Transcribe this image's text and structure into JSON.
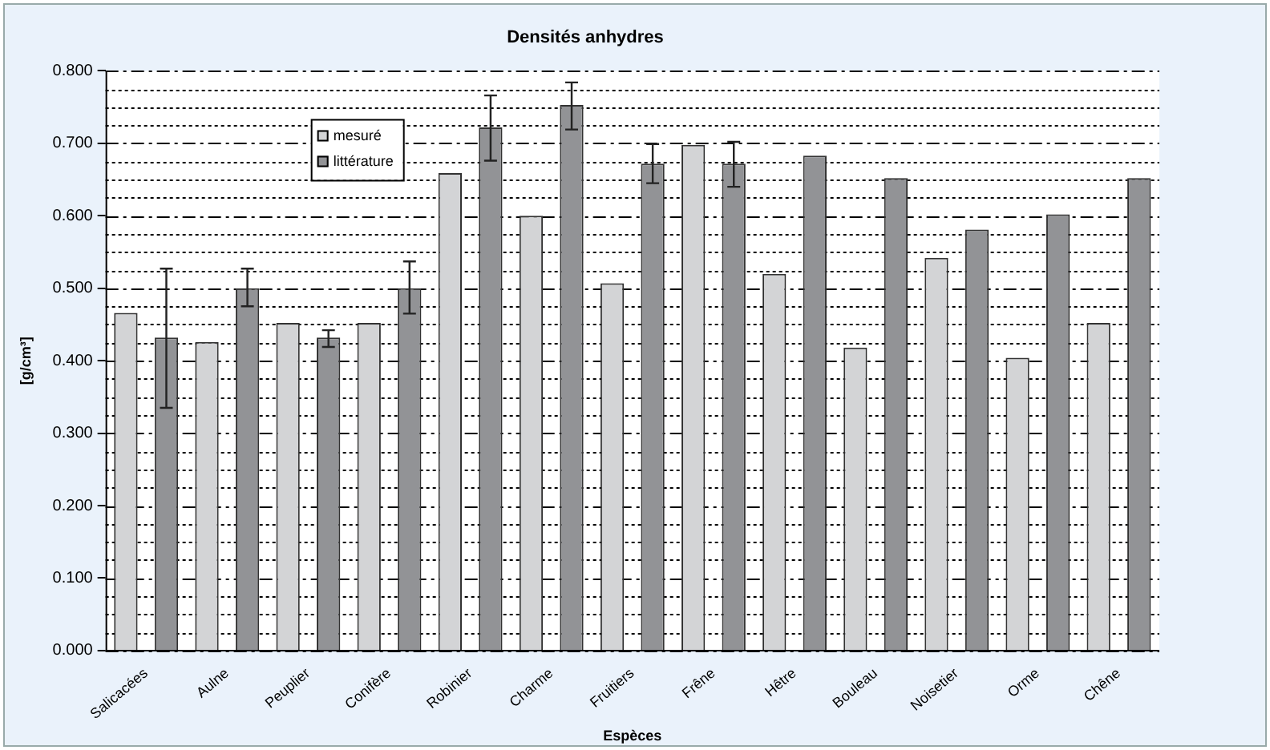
{
  "chart_data": {
    "type": "bar",
    "title": "Densités anhydres",
    "xlabel": "Espèces",
    "ylabel": "[g/cm³]",
    "categories": [
      "Salicacées",
      "Aulne",
      "Peuplier",
      "Conifère",
      "Robinier",
      "Charme",
      "Fruitiers",
      "Frêne",
      "Hêtre",
      "Bouleau",
      "Noisetier",
      "Orme",
      "Chêne"
    ],
    "series": [
      {
        "name": "mesuré",
        "color": "#d3d4d6",
        "values": [
          0.466,
          0.426,
          0.452,
          0.452,
          0.659,
          0.6,
          0.507,
          0.698,
          0.52,
          0.418,
          0.542,
          0.404,
          0.452
        ]
      },
      {
        "name": "littérature",
        "color": "#929396",
        "values": [
          0.432,
          0.5,
          0.432,
          0.5,
          0.722,
          0.753,
          0.672,
          0.672,
          0.683,
          0.652,
          0.581,
          0.602,
          0.652
        ],
        "errors": [
          [
            0.335,
            0.527
          ],
          [
            0.475,
            0.527
          ],
          [
            0.419,
            0.442
          ],
          [
            0.465,
            0.537
          ],
          [
            0.676,
            0.766
          ],
          [
            0.719,
            0.784
          ],
          [
            0.645,
            0.699
          ],
          [
            0.64,
            0.702
          ],
          null,
          null,
          null,
          null,
          null
        ]
      }
    ],
    "ylim": [
      0,
      0.8
    ],
    "yticks": [
      {
        "value": 0,
        "label": "0.000"
      },
      {
        "value": 0.025,
        "label": null
      },
      {
        "value": 0.05,
        "label": null
      },
      {
        "value": 0.075,
        "label": null
      },
      {
        "value": 0.1,
        "label": "0.100"
      },
      {
        "value": 0.125,
        "label": null
      },
      {
        "value": 0.15,
        "label": null
      },
      {
        "value": 0.175,
        "label": null
      },
      {
        "value": 0.2,
        "label": "0.200"
      },
      {
        "value": 0.225,
        "label": null
      },
      {
        "value": 0.25,
        "label": null
      },
      {
        "value": 0.275,
        "label": null
      },
      {
        "value": 0.3,
        "label": "0.300"
      },
      {
        "value": 0.325,
        "label": null
      },
      {
        "value": 0.35,
        "label": null
      },
      {
        "value": 0.375,
        "label": null
      },
      {
        "value": 0.4,
        "label": "0.400"
      },
      {
        "value": 0.425,
        "label": null
      },
      {
        "value": 0.45,
        "label": null
      },
      {
        "value": 0.475,
        "label": null
      },
      {
        "value": 0.5,
        "label": "0.500"
      },
      {
        "value": 0.525,
        "label": null
      },
      {
        "value": 0.55,
        "label": null
      },
      {
        "value": 0.575,
        "label": null
      },
      {
        "value": 0.6,
        "label": "0.600"
      },
      {
        "value": 0.625,
        "label": null
      },
      {
        "value": 0.65,
        "label": null
      },
      {
        "value": 0.675,
        "label": null
      },
      {
        "value": 0.7,
        "label": "0.700"
      },
      {
        "value": 0.725,
        "label": null
      },
      {
        "value": 0.75,
        "label": null
      },
      {
        "value": 0.775,
        "label": null
      },
      {
        "value": 0.8,
        "label": "0.800"
      }
    ],
    "grid": true,
    "legend": "top left"
  }
}
